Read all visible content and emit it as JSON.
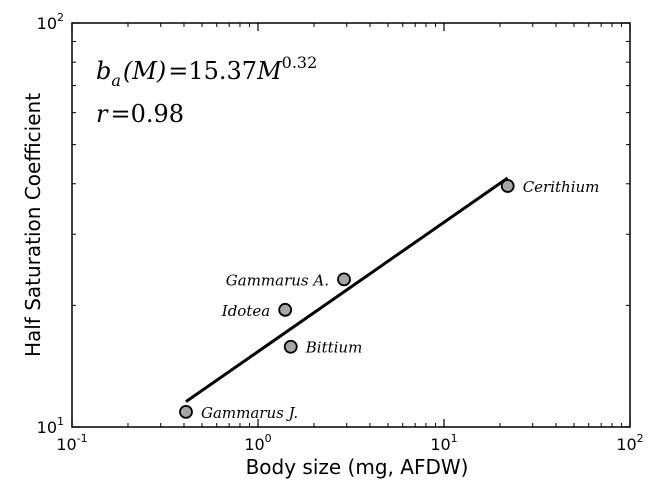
{
  "chart_data": {
    "type": "scatter",
    "title": "",
    "xlabel": "Body size (mg, AFDW)",
    "ylabel": "Half Saturation Coefficient",
    "xscale": "log",
    "yscale": "log",
    "xlim": [
      0.1,
      100
    ],
    "ylim": [
      10,
      100
    ],
    "grid": false,
    "x_ticks": [
      {
        "value": 0.1,
        "base": "10",
        "exp": "-1"
      },
      {
        "value": 1,
        "base": "10",
        "exp": "0"
      },
      {
        "value": 10,
        "base": "10",
        "exp": "1"
      },
      {
        "value": 100,
        "base": "10",
        "exp": "2"
      }
    ],
    "y_ticks": [
      {
        "value": 10,
        "base": "10",
        "exp": "1"
      },
      {
        "value": 100,
        "base": "10",
        "exp": "2"
      }
    ],
    "points": [
      {
        "label": "Gammarus J.",
        "x": 0.41,
        "y": 10.9
      },
      {
        "label": "Bittium",
        "x": 1.5,
        "y": 15.8
      },
      {
        "label": "Idotea",
        "x": 1.4,
        "y": 19.5
      },
      {
        "label": "Gammarus A.",
        "x": 2.9,
        "y": 23.2
      },
      {
        "label": "Cerithium",
        "x": 22,
        "y": 39.5
      }
    ],
    "fit": {
      "coefficient": 15.37,
      "exponent": 0.32,
      "x_range": [
        0.41,
        22
      ]
    },
    "annotations": {
      "equation_lhs": "b",
      "equation_sub": "a",
      "equation_arg": "(M)",
      "equation_eq": "=",
      "equation_coef": "15.37",
      "equation_var": "M",
      "equation_exp": "0.32",
      "r_label": "r",
      "r_eq": "=",
      "r_value": "0.98"
    },
    "colors": {
      "marker_fill": "#a6a6a6",
      "marker_stroke": "#000000",
      "line": "#000000"
    }
  }
}
